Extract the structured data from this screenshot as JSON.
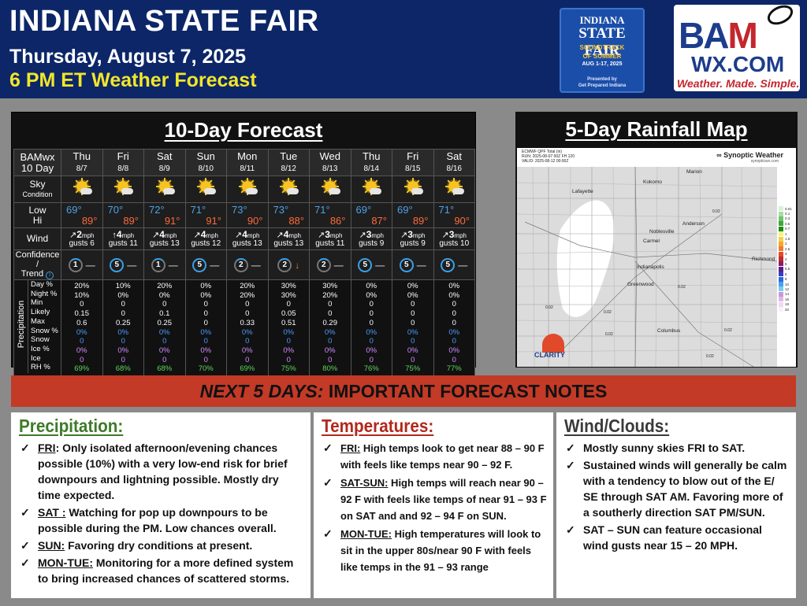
{
  "header": {
    "title": "INDIANA STATE FAIR",
    "date": "Thursday, August 7, 2025",
    "subtitle": "6 PM ET Weather Forecast",
    "colors": {
      "background": "#0c2668",
      "subtitle": "#f2e62a"
    }
  },
  "fair_logo": {
    "line1": "INDIANA",
    "line2": "STATE FAIR",
    "line3": "SOUNDTRACK",
    "line4": "OF SUMMER",
    "line5": "AUG 1-17, 2025",
    "line6": "Presented by",
    "line7": "Get Prepared Indiana"
  },
  "bam_logo": {
    "word": "BAM",
    "site": "WX.COM",
    "tagline": "Weather. Made. Simple."
  },
  "forecast": {
    "title": "10-Day Forecast",
    "corner_line1": "BAMwx",
    "corner_line2": "10 Day",
    "sky_label_1": "Sky",
    "sky_label_2": "Condition",
    "low_label": "Low",
    "hi_label": "Hi",
    "wind_label": "Wind",
    "conf_label_1": "Confidence /",
    "conf_label_2": "Trend",
    "precip_vertical": "Precipitation",
    "precip_rows": [
      "Day %",
      "Night %",
      "Min",
      "Likely",
      "Max",
      "Snow %",
      "Snow",
      "Ice %",
      "Ice",
      "RH %"
    ],
    "days": [
      {
        "name": "Thu",
        "date": "8/7",
        "low": "69°",
        "hi": "89°",
        "wind_speed": "2",
        "wind_unit": "mph",
        "gusts": "gusts 6",
        "wind_arrow": "↗",
        "conf": "1",
        "trend": "—",
        "day_pct": "20%",
        "night_pct": "10%",
        "min": "0",
        "likely": "0.15",
        "max": "0.6",
        "snow_pct": "0%",
        "snow": "0",
        "ice_pct": "0%",
        "ice": "0",
        "rh": "69%"
      },
      {
        "name": "Fri",
        "date": "8/8",
        "low": "70°",
        "hi": "89°",
        "wind_speed": "4",
        "wind_unit": "mph",
        "gusts": "gusts 11",
        "wind_arrow": "↑",
        "conf": "5",
        "trend": "—",
        "day_pct": "10%",
        "night_pct": "0%",
        "min": "0",
        "likely": "0",
        "max": "0.25",
        "snow_pct": "0%",
        "snow": "0",
        "ice_pct": "0%",
        "ice": "0",
        "rh": "68%"
      },
      {
        "name": "Sat",
        "date": "8/9",
        "low": "72°",
        "hi": "91°",
        "wind_speed": "4",
        "wind_unit": "mph",
        "gusts": "gusts 13",
        "wind_arrow": "↗",
        "conf": "1",
        "trend": "—",
        "day_pct": "20%",
        "night_pct": "0%",
        "min": "0",
        "likely": "0.1",
        "max": "0.25",
        "snow_pct": "0%",
        "snow": "0",
        "ice_pct": "0%",
        "ice": "0",
        "rh": "68%"
      },
      {
        "name": "Sun",
        "date": "8/10",
        "low": "71°",
        "hi": "91°",
        "wind_speed": "4",
        "wind_unit": "mph",
        "gusts": "gusts 12",
        "wind_arrow": "↗",
        "conf": "5",
        "trend": "—",
        "day_pct": "0%",
        "night_pct": "0%",
        "min": "0",
        "likely": "0",
        "max": "0",
        "snow_pct": "0%",
        "snow": "0",
        "ice_pct": "0%",
        "ice": "0",
        "rh": "70%"
      },
      {
        "name": "Mon",
        "date": "8/11",
        "low": "73°",
        "hi": "90°",
        "wind_speed": "4",
        "wind_unit": "mph",
        "gusts": "gusts 13",
        "wind_arrow": "↗",
        "conf": "2",
        "trend": "—",
        "day_pct": "20%",
        "night_pct": "20%",
        "min": "0",
        "likely": "0",
        "max": "0.33",
        "snow_pct": "0%",
        "snow": "0",
        "ice_pct": "0%",
        "ice": "0",
        "rh": "69%"
      },
      {
        "name": "Tue",
        "date": "8/12",
        "low": "73°",
        "hi": "88°",
        "wind_speed": "4",
        "wind_unit": "mph",
        "gusts": "gusts 13",
        "wind_arrow": "↗",
        "conf": "2",
        "trend": "↓",
        "day_pct": "30%",
        "night_pct": "30%",
        "min": "0",
        "likely": "0.05",
        "max": "0.51",
        "snow_pct": "0%",
        "snow": "0",
        "ice_pct": "0%",
        "ice": "0",
        "rh": "75%"
      },
      {
        "name": "Wed",
        "date": "8/13",
        "low": "71°",
        "hi": "86°",
        "wind_speed": "3",
        "wind_unit": "mph",
        "gusts": "gusts 11",
        "wind_arrow": "↗",
        "conf": "2",
        "trend": "—",
        "day_pct": "30%",
        "night_pct": "20%",
        "min": "0",
        "likely": "0",
        "max": "0.29",
        "snow_pct": "0%",
        "snow": "0",
        "ice_pct": "0%",
        "ice": "0",
        "rh": "80%"
      },
      {
        "name": "Thu",
        "date": "8/14",
        "low": "69°",
        "hi": "87°",
        "wind_speed": "3",
        "wind_unit": "mph",
        "gusts": "gusts 9",
        "wind_arrow": "↗",
        "conf": "5",
        "trend": "—",
        "day_pct": "0%",
        "night_pct": "0%",
        "min": "0",
        "likely": "0",
        "max": "0",
        "snow_pct": "0%",
        "snow": "0",
        "ice_pct": "0%",
        "ice": "0",
        "rh": "76%"
      },
      {
        "name": "Fri",
        "date": "8/15",
        "low": "69°",
        "hi": "89°",
        "wind_speed": "3",
        "wind_unit": "mph",
        "gusts": "gusts 9",
        "wind_arrow": "↗",
        "conf": "5",
        "trend": "—",
        "day_pct": "0%",
        "night_pct": "0%",
        "min": "0",
        "likely": "0",
        "max": "0",
        "snow_pct": "0%",
        "snow": "0",
        "ice_pct": "0%",
        "ice": "0",
        "rh": "75%"
      },
      {
        "name": "Sat",
        "date": "8/16",
        "low": "71°",
        "hi": "90°",
        "wind_speed": "3",
        "wind_unit": "mph",
        "gusts": "gusts 10",
        "wind_arrow": "↗",
        "conf": "5",
        "trend": "—",
        "day_pct": "0%",
        "night_pct": "0%",
        "min": "0",
        "likely": "0",
        "max": "0",
        "snow_pct": "0%",
        "snow": "0",
        "ice_pct": "0%",
        "ice": "0",
        "rh": "77%"
      }
    ]
  },
  "rainfall": {
    "title": "5-Day Rainfall Map",
    "header_line1": "ECMWF QPF Total (in)",
    "header_line2": "RUN: 2025-08-07 00Z FH 120",
    "header_line3": "VALID: 2025-08-12 00:00Z",
    "brand": "Synoptic Weather",
    "brand_sub": "synopticwx.com",
    "cities": [
      "Marion",
      "Kokomo",
      "Lafayette",
      "Anderson",
      "Noblesville",
      "Carmel",
      "Richmond",
      "Indianapolis",
      "Greenwood",
      "Columbus"
    ],
    "values": [
      "0.02",
      "0.02",
      "0.02",
      "0.02",
      "0.02",
      "0.02",
      "0.02"
    ],
    "legend": [
      "0.01",
      "0.1",
      "0.3",
      "0.5",
      "0.7",
      "1",
      "1.5",
      "2",
      "2.5",
      "3",
      "4",
      "5",
      "5.5",
      "6",
      "8",
      "10",
      "12",
      "14",
      "16",
      "18",
      "20"
    ],
    "legend_colors": [
      "#d8f0d8",
      "#a8dca8",
      "#6cc46c",
      "#3aa83a",
      "#1e8a1e",
      "#f4f47a",
      "#f4d04a",
      "#f4a82a",
      "#f47a2a",
      "#e04a2a",
      "#c42a2a",
      "#8a1e6a",
      "#5a1e8a",
      "#3a3ac4",
      "#2a6ae0",
      "#4aa0e8",
      "#7ac8f4",
      "#c49ad8",
      "#e0b8e8",
      "#f0d8f0",
      "#f8f0f8"
    ],
    "clarity_label": "CLARITY"
  },
  "notes": {
    "banner_italic": "NEXT 5 DAYS:",
    "banner_rest": " IMPORTANT FORECAST NOTES",
    "precipitation": {
      "title": "Precipitation:",
      "items": [
        {
          "lead": "FRI",
          "text": ": Only isolated afternoon/evening chances possible (10%) with a very low-end risk for brief downpours and lightning possible.  Mostly dry time expected."
        },
        {
          "lead": "SAT :",
          "text": " Watching for pop up downpours to be possible during the PM. Low chances overall."
        },
        {
          "lead": "SUN:",
          "text": " Favoring dry conditions at present."
        },
        {
          "lead": "MON-TUE:",
          "text": " Monitoring for a more defined system to bring increased chances of scattered storms."
        }
      ]
    },
    "temperatures": {
      "title": "Temperatures:",
      "items": [
        {
          "lead": "FRI:",
          "text": " High temps look to get near 88 – 90 F with feels like temps near 90 – 92 F."
        },
        {
          "lead": "SAT-SUN:",
          "text": " High temps will reach near 90 – 92 F with feels like temps of near 91 – 93 F on SAT and and 92 – 94 F on SUN."
        },
        {
          "lead": "MON-TUE:",
          "text": " High temperatures will look to sit in the upper 80s/near 90 F with feels like temps in the 91 – 93 range"
        }
      ]
    },
    "wind_clouds": {
      "title": "Wind/Clouds:",
      "items": [
        {
          "lead": "",
          "text": "Mostly sunny skies FRI to SAT."
        },
        {
          "lead": "",
          "text": "Sustained winds will generally be calm with a tendency to blow out of the E/ SE through SAT AM. Favoring more of a southerly direction SAT PM/SUN."
        },
        {
          "lead": "",
          "text": "SAT – SUN can feature occasional wind gusts near 15 – 20 MPH."
        }
      ]
    }
  }
}
